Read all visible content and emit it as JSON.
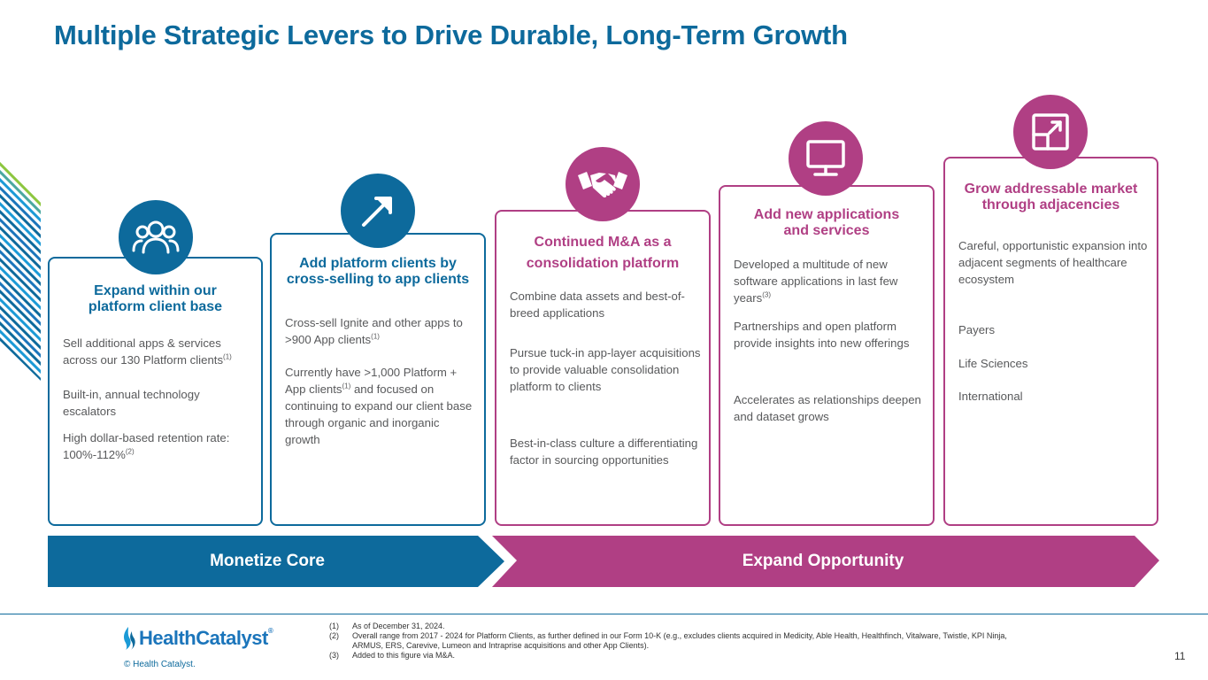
{
  "title": "Multiple Strategic Levers to Drive Durable, Long-Term Growth",
  "colors": {
    "blue": "#0d6a9c",
    "purple": "#b03f84",
    "text": "#58595b"
  },
  "cards": [
    {
      "icon": "people-group-icon",
      "title": "Expand within our platform client base",
      "points": [
        {
          "text": "Sell additional apps & services across our 130 Platform clients",
          "sup": "(1)"
        },
        {
          "text": "Built-in, annual technology escalators"
        },
        {
          "text": "High dollar-based retention rate: 100%-112%",
          "sup": "(2)"
        }
      ]
    },
    {
      "icon": "trend-arrow-icon",
      "title": "Add platform clients by cross-selling to app clients",
      "points": [
        {
          "text": "Cross-sell Ignite and other apps to >900 App clients",
          "sup": "(1)"
        },
        {
          "text_a": "Currently have >1,000 Platform + App clients",
          "sup": "(1)",
          "text_b": " and focused on continuing to expand our client base through organic and inorganic growth"
        }
      ]
    },
    {
      "icon": "handshake-icon",
      "title": "Continued M&A as a consolidation platform",
      "points": [
        {
          "text": "Combine data assets and best-of-breed applications"
        },
        {
          "text": "Pursue tuck-in app-layer acquisitions to provide valuable consolidation platform to clients"
        },
        {
          "text": "Best-in-class culture a differentiating factor in sourcing opportunities"
        }
      ]
    },
    {
      "icon": "monitor-icon",
      "title": "Add new applications and services",
      "points": [
        {
          "text": "Developed a multitude of new software applications in last few years",
          "sup": "(3)"
        },
        {
          "text": "Partnerships and open platform provide insights into new offerings"
        },
        {
          "text": "Accelerates as relationships deepen and dataset grows"
        }
      ]
    },
    {
      "icon": "expand-window-icon",
      "title": "Grow addressable market through adjacencies",
      "points": [
        {
          "text": "Careful, opportunistic expansion into adjacent segments of healthcare ecosystem"
        },
        {
          "text": "Payers"
        },
        {
          "text": "Life Sciences"
        },
        {
          "text": "International"
        }
      ]
    }
  ],
  "arrows": {
    "core": "Monetize Core",
    "expand": "Expand Opportunity"
  },
  "footer": {
    "logo_text": "HealthCatalyst",
    "logo_tm": "®",
    "copyright": "© Health Catalyst.",
    "page": "11",
    "footnotes": [
      {
        "num": "(1)",
        "text": "As of December 31, 2024."
      },
      {
        "num": "(2)",
        "text": "Overall range from 2017 - 2024 for Platform Clients, as further defined in our Form 10-K (e.g., excludes clients acquired in Medicity, Able Health, Healthfinch, Vitalware, Twistle, KPI Ninja, ARMUS, ERS, Carevive, Lumeon and Intraprise acquisitions and other App Clients)."
      },
      {
        "num": "(3)",
        "text": "Added to this figure via M&A."
      }
    ]
  }
}
